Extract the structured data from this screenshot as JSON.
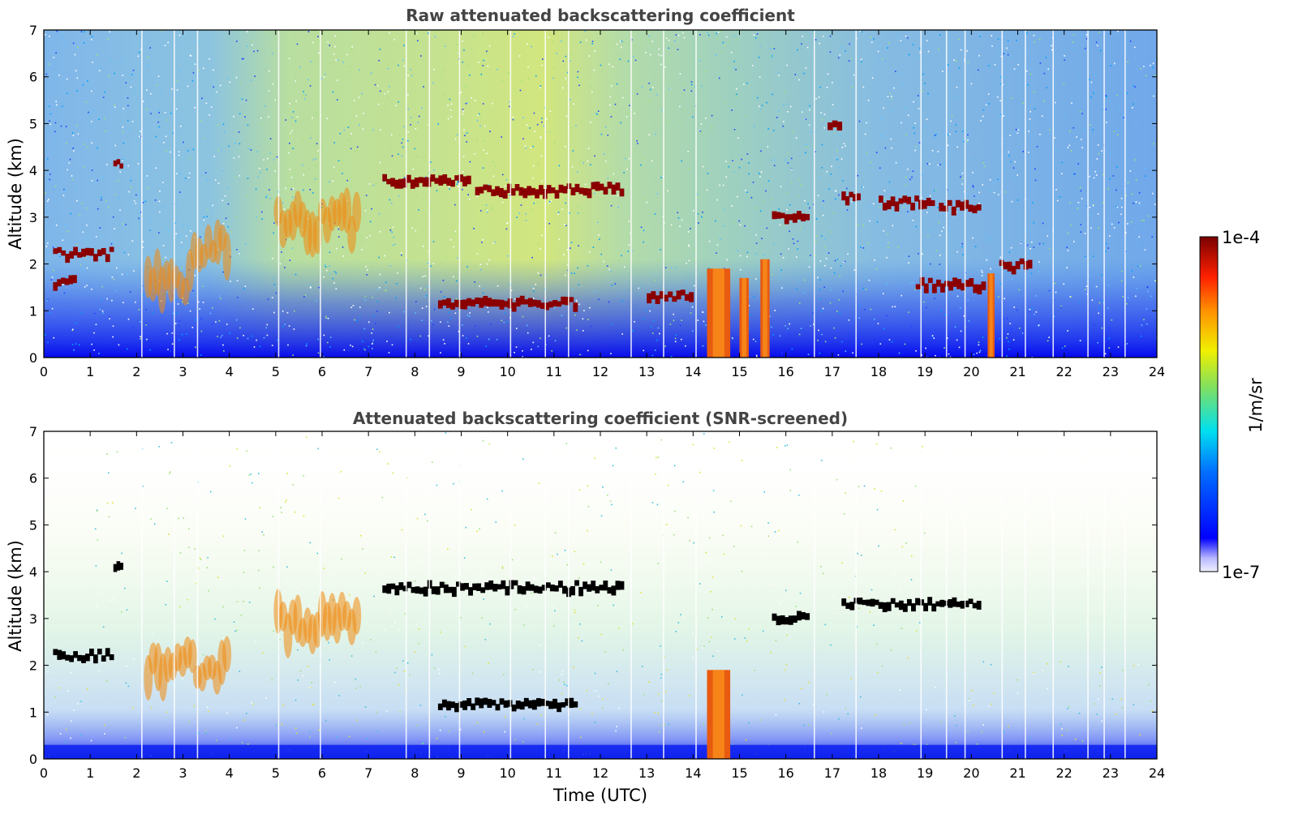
{
  "chart_data": [
    {
      "type": "heatmap",
      "title": "Raw attenuated backscattering coefficient",
      "xlabel": "",
      "ylabel": "Altitude (km)",
      "xlim": [
        0,
        24
      ],
      "ylim": [
        0,
        7
      ],
      "xticks": [
        "0",
        "1",
        "2",
        "3",
        "4",
        "5",
        "6",
        "7",
        "8",
        "9",
        "10",
        "11",
        "12",
        "13",
        "14",
        "15",
        "16",
        "17",
        "18",
        "19",
        "20",
        "21",
        "22",
        "23",
        "24"
      ],
      "yticks": [
        "0",
        "1",
        "2",
        "3",
        "4",
        "5",
        "6",
        "7"
      ],
      "background": "noisy field: blue aloft, yellow-green daytime noise (~4–12 UTC), dense blue near surface",
      "features": [
        {
          "kind": "cloud_layer",
          "t_start": 0.2,
          "t_end": 1.5,
          "alt_km": 2.2
        },
        {
          "kind": "cloud_layer",
          "t_start": 0.2,
          "t_end": 0.7,
          "alt_km": 1.6
        },
        {
          "kind": "cloud_layer",
          "t_start": 1.5,
          "t_end": 1.7,
          "alt_km": 4.1
        },
        {
          "kind": "aerosol_plume",
          "t_start": 2.2,
          "t_end": 3.2,
          "alt_km": 1.6
        },
        {
          "kind": "aerosol_plume",
          "t_start": 3.2,
          "t_end": 4.0,
          "alt_km": 2.4
        },
        {
          "kind": "aerosol_plume",
          "t_start": 5.0,
          "t_end": 6.8,
          "alt_km": 2.9
        },
        {
          "kind": "cloud_layer",
          "t_start": 7.3,
          "t_end": 9.2,
          "alt_km": 3.75
        },
        {
          "kind": "cloud_layer",
          "t_start": 9.3,
          "t_end": 11.1,
          "alt_km": 3.55
        },
        {
          "kind": "cloud_layer",
          "t_start": 11.1,
          "t_end": 12.5,
          "alt_km": 3.6
        },
        {
          "kind": "cloud_layer",
          "t_start": 8.5,
          "t_end": 11.5,
          "alt_km": 1.15
        },
        {
          "kind": "cloud_layer",
          "t_start": 13.0,
          "t_end": 14.0,
          "alt_km": 1.3
        },
        {
          "kind": "precipitation",
          "t_start": 14.3,
          "t_end": 14.8,
          "alt_km": 1.0
        },
        {
          "kind": "precipitation",
          "t_start": 15.0,
          "t_end": 15.2,
          "alt_km": 0.8
        },
        {
          "kind": "precipitation",
          "t_start": 15.45,
          "t_end": 15.65,
          "alt_km": 1.2
        },
        {
          "kind": "cloud_layer",
          "t_start": 15.7,
          "t_end": 16.5,
          "alt_km": 3.0
        },
        {
          "kind": "cloud_layer",
          "t_start": 16.9,
          "t_end": 17.2,
          "alt_km": 5.0
        },
        {
          "kind": "cloud_layer",
          "t_start": 17.2,
          "t_end": 17.6,
          "alt_km": 3.4
        },
        {
          "kind": "cloud_layer",
          "t_start": 18.0,
          "t_end": 19.2,
          "alt_km": 3.3
        },
        {
          "kind": "cloud_layer",
          "t_start": 19.3,
          "t_end": 20.2,
          "alt_km": 3.2
        },
        {
          "kind": "cloud_layer",
          "t_start": 18.8,
          "t_end": 20.3,
          "alt_km": 1.55
        },
        {
          "kind": "precipitation",
          "t_start": 20.35,
          "t_end": 20.5,
          "alt_km": 0.9
        },
        {
          "kind": "cloud_layer",
          "t_start": 20.6,
          "t_end": 21.3,
          "alt_km": 1.95
        }
      ]
    },
    {
      "type": "heatmap",
      "title": "Attenuated backscattering coefficient (SNR-screened)",
      "xlabel": "Time (UTC)",
      "ylabel": "Altitude (km)",
      "xlim": [
        0,
        24
      ],
      "ylim": [
        0,
        7
      ],
      "xticks": [
        "0",
        "1",
        "2",
        "3",
        "4",
        "5",
        "6",
        "7",
        "8",
        "9",
        "10",
        "11",
        "12",
        "13",
        "14",
        "15",
        "16",
        "17",
        "18",
        "19",
        "20",
        "21",
        "22",
        "23",
        "24"
      ],
      "yticks": [
        "0",
        "1",
        "2",
        "3",
        "4",
        "5",
        "6",
        "7"
      ],
      "background": "white where low SNR; same features as raw panel with dense layers shown in black",
      "features": [
        {
          "kind": "cloud_layer",
          "t_start": 0.2,
          "t_end": 1.5,
          "alt_km": 2.2
        },
        {
          "kind": "cloud_layer",
          "t_start": 1.5,
          "t_end": 1.7,
          "alt_km": 4.1
        },
        {
          "kind": "aerosol_plume",
          "t_start": 2.2,
          "t_end": 4.0,
          "alt_km": 2.0
        },
        {
          "kind": "aerosol_plume",
          "t_start": 5.0,
          "t_end": 6.8,
          "alt_km": 2.9
        },
        {
          "kind": "cloud_layer",
          "t_start": 7.3,
          "t_end": 12.5,
          "alt_km": 3.65
        },
        {
          "kind": "cloud_layer",
          "t_start": 8.5,
          "t_end": 11.5,
          "alt_km": 1.15
        },
        {
          "kind": "precipitation",
          "t_start": 14.3,
          "t_end": 14.8,
          "alt_km": 1.0
        },
        {
          "kind": "cloud_layer",
          "t_start": 15.7,
          "t_end": 16.5,
          "alt_km": 3.0
        },
        {
          "kind": "cloud_layer",
          "t_start": 17.2,
          "t_end": 20.2,
          "alt_km": 3.3
        }
      ]
    }
  ],
  "colorbar": {
    "label": "1/m/sr",
    "max_label": "1e-4",
    "min_label": "1e-7",
    "colormap": [
      "#ffffff",
      "#c8c8ff",
      "#0000ff",
      "#00a0ff",
      "#00e0e0",
      "#70e060",
      "#e0e000",
      "#ff8000",
      "#ff2000",
      "#7a0000"
    ]
  }
}
